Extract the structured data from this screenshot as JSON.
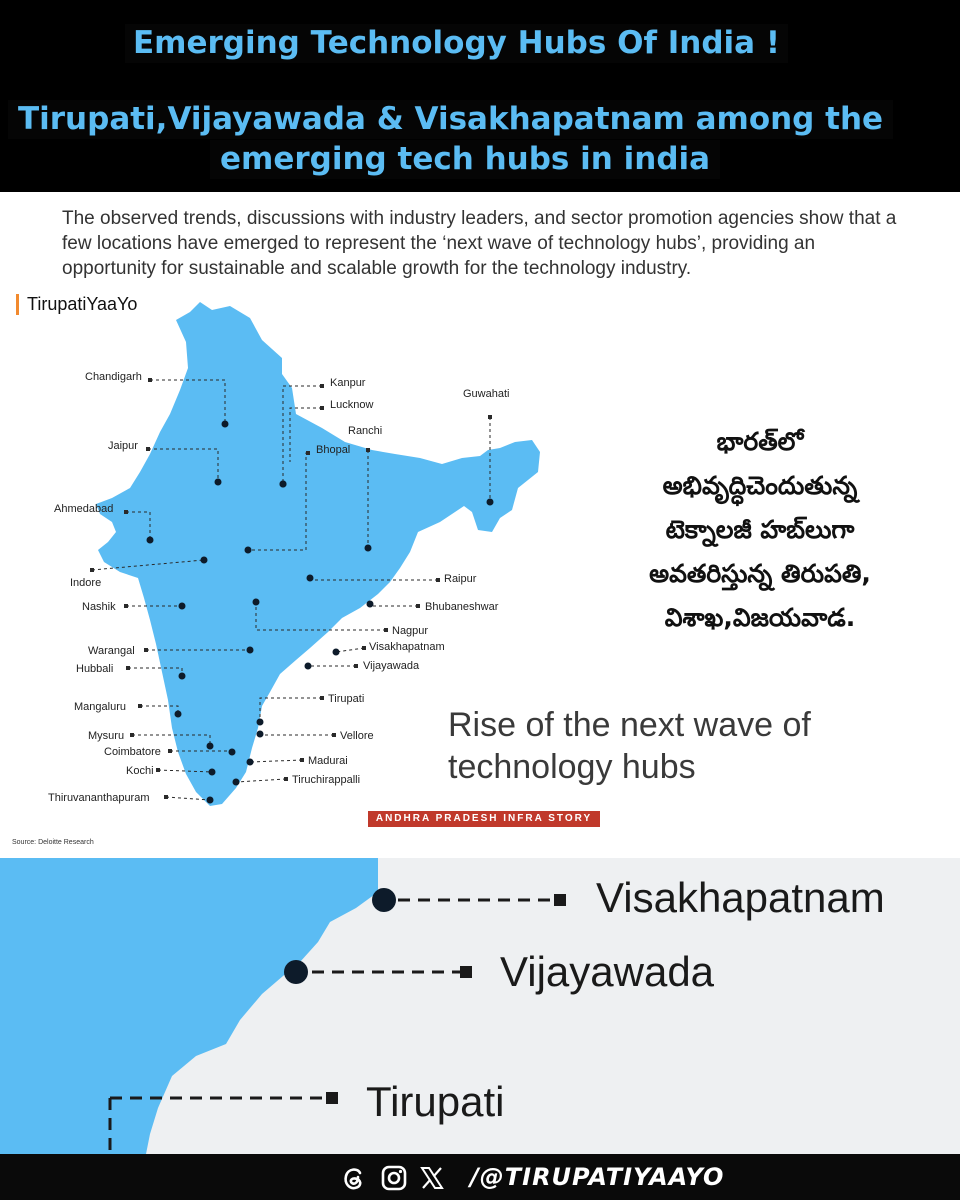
{
  "header": {
    "title": "Emerging Technology Hubs Of India !",
    "subtitle_line1": "Tirupati,Vijayawada & Visakhapatnam among the",
    "subtitle_line2": "emerging tech hubs in india"
  },
  "intro": {
    "paragraph": "The observed trends, discussions with industry leaders, and sector promotion agencies show that a few locations have emerged to represent the ‘next wave of technology hubs’, providing an opportunity for sustainable and scalable growth for the technology industry."
  },
  "brand": {
    "name": "TirupatiYaaYo"
  },
  "map": {
    "land_color": "#5bbcf3",
    "cities": [
      {
        "name": "Chandigarh"
      },
      {
        "name": "Kanpur"
      },
      {
        "name": "Lucknow"
      },
      {
        "name": "Guwahati"
      },
      {
        "name": "Ranchi"
      },
      {
        "name": "Bhopal"
      },
      {
        "name": "Jaipur"
      },
      {
        "name": "Ahmedabad"
      },
      {
        "name": "Indore"
      },
      {
        "name": "Raipur"
      },
      {
        "name": "Nashik"
      },
      {
        "name": "Bhubaneshwar"
      },
      {
        "name": "Nagpur"
      },
      {
        "name": "Visakhapatnam"
      },
      {
        "name": "Warangal"
      },
      {
        "name": "Vijayawada"
      },
      {
        "name": "Hubbali"
      },
      {
        "name": "Tirupati"
      },
      {
        "name": "Mangaluru"
      },
      {
        "name": "Mysuru"
      },
      {
        "name": "Vellore"
      },
      {
        "name": "Coimbatore"
      },
      {
        "name": "Madurai"
      },
      {
        "name": "Kochi"
      },
      {
        "name": "Tiruchirappalli"
      },
      {
        "name": "Thiruvananthapuram"
      }
    ]
  },
  "telugu_text": {
    "line1": "భారత్‌లో",
    "line2": "అభివృద్ధిచెందుతున్న",
    "line3": "టెక్నాలజీ హబ్‌లుగా",
    "line4": "అవతరిస్తున్న తిరుపతి,",
    "line5": "విశాఖ,విజయవాడ."
  },
  "rise": {
    "title": "Rise of the next wave of technology hubs"
  },
  "story_badge": "ANDHRA PRADESH INFRA STORY",
  "source": "Source: Deloitte Research",
  "zoom": {
    "labels": {
      "visakhapatnam": "Visakhapatnam",
      "vijayawada": "Vijayawada",
      "tirupati": "Tirupati"
    }
  },
  "footer": {
    "handle": "/@TIRUPATIYAAYO",
    "icons": [
      "threads-icon",
      "instagram-icon",
      "x-icon"
    ]
  }
}
